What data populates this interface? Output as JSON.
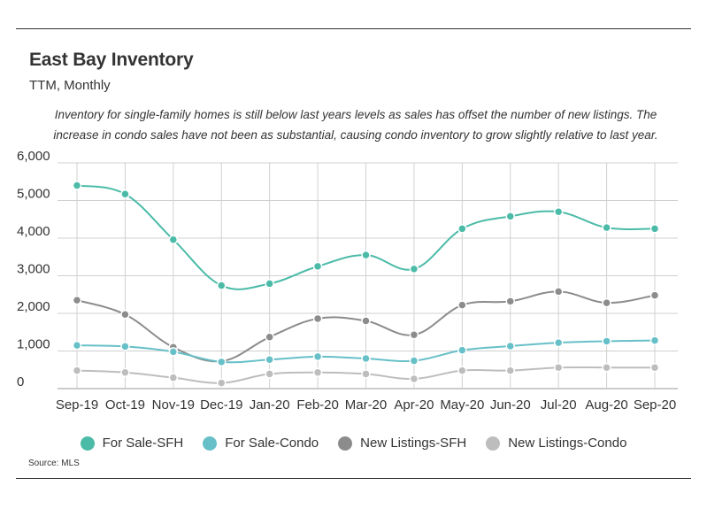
{
  "header": {
    "title": "East Bay Inventory",
    "subtitle": "TTM, Monthly",
    "description": "Inventory for single-family homes is still below last years levels as sales has offset the number of new listings. The increase in condo sales have not been as substantial, causing condo inventory to grow slightly relative to last year."
  },
  "source": "Source:  MLS",
  "chart_data": {
    "type": "line",
    "categories": [
      "Sep-19",
      "Oct-19",
      "Nov-19",
      "Dec-19",
      "Jan-20",
      "Feb-20",
      "Mar-20",
      "Apr-20",
      "May-20",
      "Jun-20",
      "Jul-20",
      "Aug-20",
      "Sep-20"
    ],
    "y_ticks": [
      "6,000",
      "5,000",
      "4,000",
      "3,000",
      "2,000",
      "1,000",
      "0"
    ],
    "ylim": [
      0,
      6000
    ],
    "grid": true,
    "legend_position": "bottom",
    "series": [
      {
        "name": "For Sale-SFH",
        "color": "#4bbba8",
        "values": [
          5400,
          5170,
          3960,
          2740,
          2790,
          3250,
          3550,
          3180,
          4250,
          4580,
          4700,
          4280,
          4250
        ]
      },
      {
        "name": "For Sale-Condo",
        "color": "#67c0c8",
        "values": [
          1150,
          1120,
          980,
          710,
          770,
          850,
          800,
          740,
          1020,
          1130,
          1220,
          1260,
          1280
        ]
      },
      {
        "name": "New Listings-SFH",
        "color": "#8c8c8c",
        "values": [
          2350,
          1970,
          1100,
          730,
          1370,
          1860,
          1800,
          1430,
          2220,
          2320,
          2580,
          2280,
          2480
        ]
      },
      {
        "name": "New Listings-Condo",
        "color": "#bdbdbd",
        "values": [
          480,
          430,
          290,
          150,
          390,
          430,
          390,
          260,
          480,
          480,
          560,
          560,
          560
        ]
      }
    ]
  }
}
